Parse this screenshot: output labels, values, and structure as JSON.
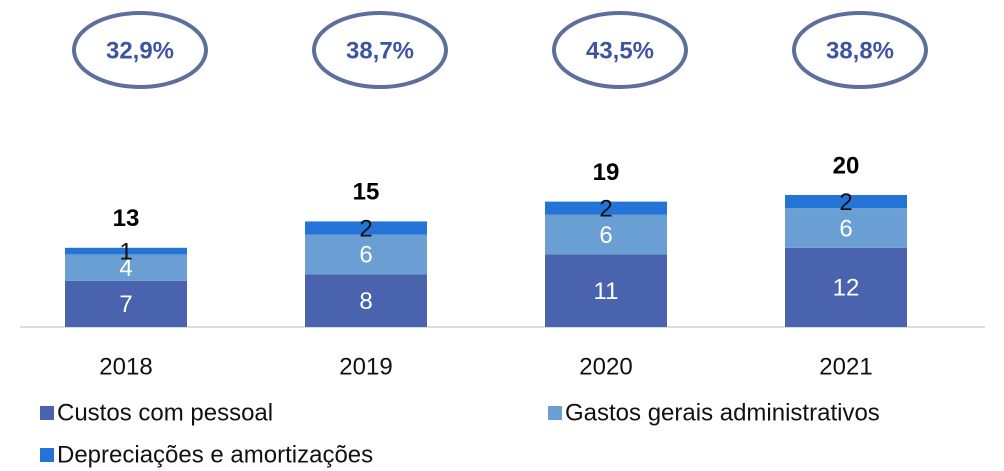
{
  "chart_data": {
    "type": "stacked_bar",
    "categories": [
      "2018",
      "2019",
      "2020",
      "2021"
    ],
    "series": [
      {
        "name": "Custos com pessoal",
        "color": "#4a63ae",
        "values": [
          7,
          8,
          11,
          12
        ]
      },
      {
        "name": "Gastos gerais administrativos",
        "color": "#6a9fd3",
        "values": [
          4,
          6,
          6,
          6
        ]
      },
      {
        "name": "Depreciações e amortizações",
        "color": "#2474d8",
        "values": [
          1,
          2,
          2,
          2
        ]
      }
    ],
    "totals": [
      13,
      15,
      19,
      20
    ],
    "ratios": [
      "32,9%",
      "38,7%",
      "43,5%",
      "38,8%"
    ]
  }
}
